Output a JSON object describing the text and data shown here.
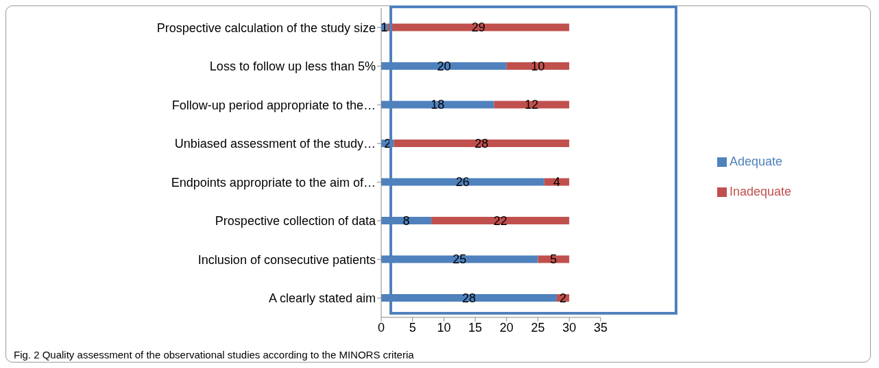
{
  "chart_data": {
    "type": "bar",
    "orientation": "horizontal",
    "stacked": true,
    "categories": [
      "Prospective  calculation of the study size",
      "Loss to follow up less than 5%",
      "Follow-up period appropriate to the…",
      "Unbiased assessment of the study…",
      "Endpoints appropriate to the aim of…",
      "Prospective collection of data",
      "Inclusion of consecutive patients",
      "A clearly stated aim"
    ],
    "series": [
      {
        "name": "Adequate",
        "color": "#4f81bd",
        "values": [
          1,
          20,
          18,
          2,
          26,
          8,
          25,
          28
        ]
      },
      {
        "name": "Inadequate",
        "color": "#c0504d",
        "values": [
          29,
          10,
          12,
          28,
          4,
          22,
          5,
          2
        ]
      }
    ],
    "xlim": [
      0,
      35
    ],
    "xticks": [
      0,
      5,
      10,
      15,
      20,
      25,
      30,
      35
    ],
    "data_labels": true,
    "grid": false,
    "legend": "right",
    "annotations": [
      "Fig. 2 Quality assessment of the observational studies according to the MINORS criteria"
    ]
  }
}
